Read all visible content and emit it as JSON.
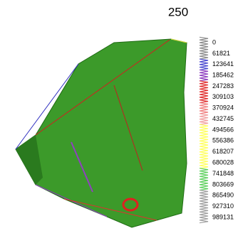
{
  "chart_data": {
    "type": "mesh",
    "title": "250",
    "colorbar": {
      "ticks": [
        0,
        61821,
        123641,
        185462,
        247283,
        309103,
        370924,
        432745,
        494566,
        556386,
        618207,
        680028,
        741848,
        803669,
        865490,
        927310,
        989131
      ],
      "colors": [
        "#8c8c8c",
        "#8c8c8c",
        "#4b4bd0",
        "#9040c0",
        "#e03030",
        "#e03030",
        "#f08080",
        "#f0a0a0",
        "#ffff60",
        "#ffff60",
        "#ffff60",
        "#ffff60",
        "#60d060",
        "#60d060",
        "#a0a0a0",
        "#a0a0a0",
        "#a0a0a0"
      ]
    }
  }
}
